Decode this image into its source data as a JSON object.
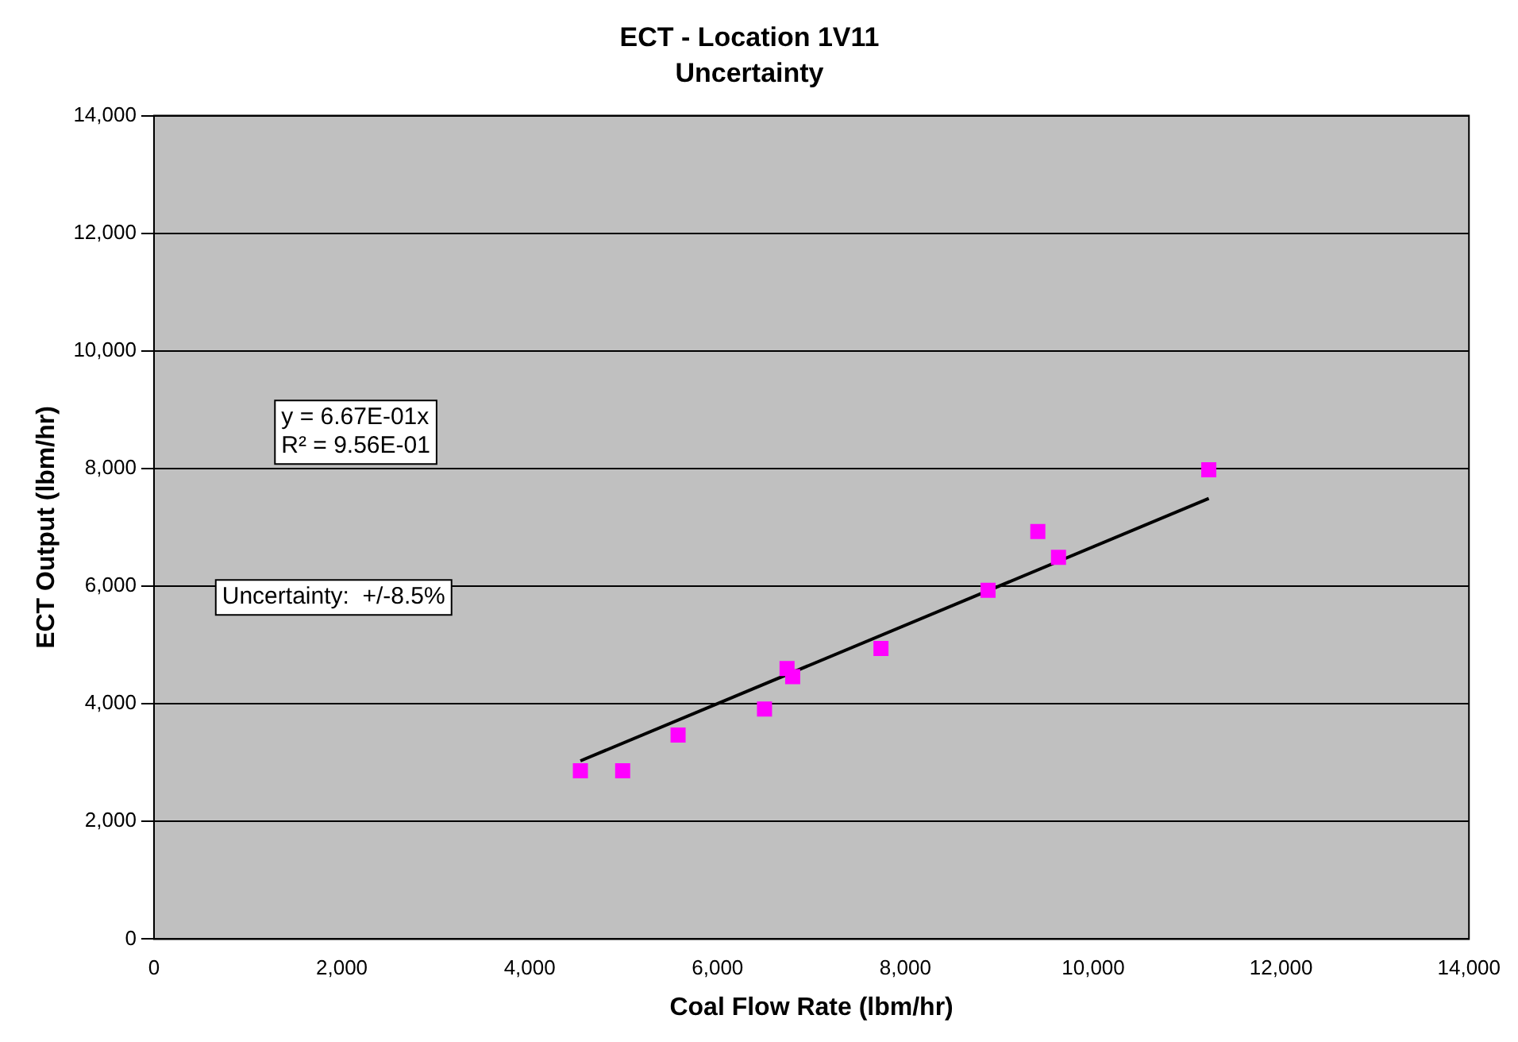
{
  "chart_data": {
    "type": "scatter",
    "title": "ECT - Location 1V11",
    "subtitle": "Uncertainty",
    "xlabel": "Coal Flow Rate (lbm/hr)",
    "ylabel": "ECT Output (lbm/hr)",
    "xlim": [
      0,
      14000
    ],
    "xticks": [
      {
        "value": 0,
        "label": "0"
      },
      {
        "value": 2000,
        "label": "2,000"
      },
      {
        "value": 4000,
        "label": "4,000"
      },
      {
        "value": 6000,
        "label": "6,000"
      },
      {
        "value": 8000,
        "label": "8,000"
      },
      {
        "value": 10000,
        "label": "10,000"
      },
      {
        "value": 12000,
        "label": "12,000"
      },
      {
        "value": 14000,
        "label": "14,000"
      }
    ],
    "ylim": [
      0,
      14000
    ],
    "yticks": [
      {
        "value": 0,
        "label": "0"
      },
      {
        "value": 2000,
        "label": "2,000"
      },
      {
        "value": 4000,
        "label": "4,000"
      },
      {
        "value": 6000,
        "label": "6,000"
      },
      {
        "value": 8000,
        "label": "8,000"
      },
      {
        "value": 10000,
        "label": "10,000"
      },
      {
        "value": 12000,
        "label": "12,000"
      },
      {
        "value": 14000,
        "label": "14,000"
      }
    ],
    "grid": "y",
    "legend": false,
    "marker": "square",
    "series": [
      {
        "type": "scatter",
        "color": "#ff00ff",
        "x": [
          4540,
          4990,
          5580,
          6500,
          6740,
          6800,
          7740,
          8880,
          9410,
          9630,
          11230
        ],
        "values": [
          2860,
          2860,
          3470,
          3910,
          4600,
          4460,
          4940,
          5930,
          6930,
          6490,
          7980
        ]
      },
      {
        "type": "line",
        "color": "#000000",
        "marker": "none",
        "x": [
          4540,
          11230
        ],
        "values": [
          3030,
          7490
        ]
      }
    ],
    "annotations": [
      "y = 6.67E-01x\nR² = 9.56E-01",
      "Uncertainty:  +/-8.5%"
    ]
  }
}
